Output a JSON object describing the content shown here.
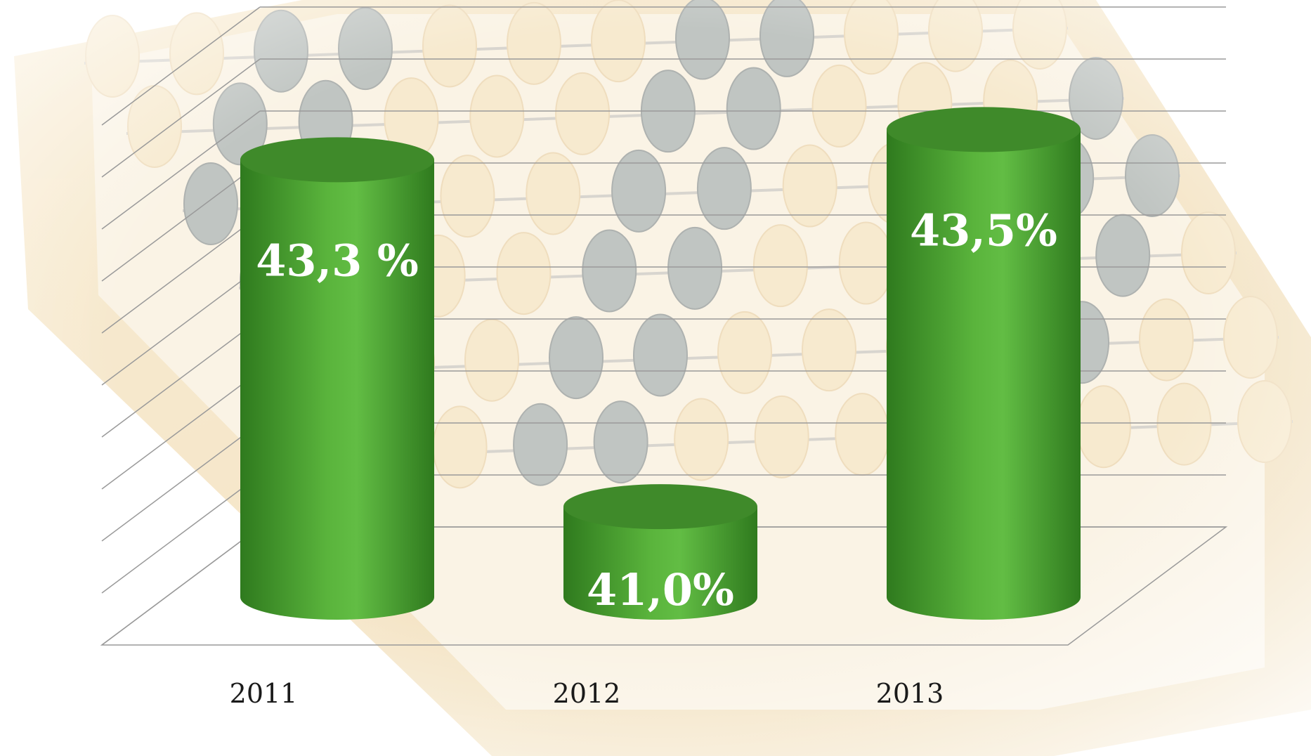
{
  "chart_data": {
    "type": "bar",
    "style": "3d-cylinder",
    "categories": [
      "2011",
      "2012",
      "2013"
    ],
    "values": [
      43.3,
      41.0,
      43.5
    ],
    "data_labels": [
      "43,3 %",
      "41,0%",
      "43,5%"
    ],
    "title": "",
    "xlabel": "",
    "ylabel": "",
    "grid": true,
    "legend": "none",
    "colors": {
      "bar_main": "#5ab43c",
      "bar_dark": "#2f7a1e",
      "bar_top": "#3f8a2a",
      "grid": "#9a9a9a",
      "label": "#ffffff",
      "axis_text": "#1a1a1a"
    },
    "background": "abacus-photo"
  }
}
